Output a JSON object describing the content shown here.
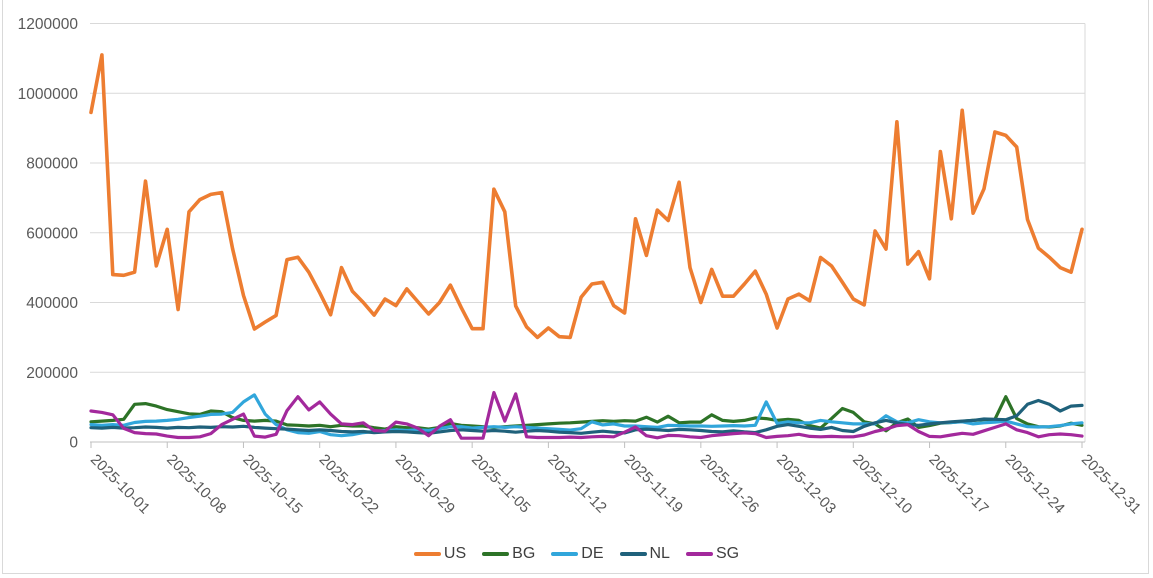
{
  "chart_data": {
    "type": "line",
    "title": "",
    "x_axis": {
      "tick_labels": [
        "2025-10-01",
        "2025-10-08",
        "2025-10-15",
        "2025-10-22",
        "2025-10-29",
        "2025-11-05",
        "2025-11-12",
        "2025-11-19",
        "2025-11-26",
        "2025-12-03",
        "2025-12-10",
        "2025-12-17",
        "2025-12-24",
        "2025-12-31"
      ],
      "start": "2025-10-01",
      "end": "2025-12-31",
      "frequency": "daily",
      "points_per_series": 92,
      "label_rotation_deg": 45
    },
    "y_axis": {
      "tick_labels": [
        "0",
        "200000",
        "400000",
        "600000",
        "800000",
        "1000000",
        "1200000"
      ],
      "min": 0,
      "max": 1200000,
      "grid": true
    },
    "legend": {
      "position": "bottom",
      "entries": [
        "US",
        "BG",
        "DE",
        "NL",
        "SG"
      ]
    },
    "series": [
      {
        "name": "US",
        "color": "#ED7D31",
        "values": [
          945000,
          1110000,
          480000,
          478000,
          487000,
          748000,
          505000,
          610000,
          380000,
          660000,
          695000,
          710000,
          715000,
          554000,
          420000,
          324000,
          344000,
          363000,
          523000,
          530000,
          487000,
          428000,
          365000,
          500000,
          432000,
          400000,
          364000,
          410000,
          391000,
          439000,
          403000,
          367000,
          400000,
          450000,
          385000,
          325000,
          325000,
          725000,
          660000,
          390000,
          330000,
          300000,
          327000,
          302000,
          300000,
          415000,
          453000,
          458000,
          391000,
          370000,
          640000,
          535000,
          665000,
          635000,
          745000,
          500000,
          400000,
          495000,
          418000,
          418000,
          453000,
          490000,
          424000,
          327000,
          410000,
          424000,
          405000,
          529000,
          505000,
          458000,
          410000,
          393000,
          605000,
          553000,
          918000,
          510000,
          546000,
          468000,
          833000,
          640000,
          951000,
          656000,
          726000,
          889000,
          879000,
          846000,
          638000,
          556000,
          530000,
          500000,
          487000,
          610000
        ]
      },
      {
        "name": "BG",
        "color": "#2D7327",
        "values": [
          58000,
          60000,
          62000,
          65000,
          108000,
          110000,
          103000,
          93000,
          87000,
          81000,
          79000,
          89000,
          87000,
          70000,
          62000,
          60000,
          62000,
          60000,
          49000,
          48000,
          46000,
          48000,
          44000,
          48000,
          46000,
          46000,
          41000,
          37000,
          44000,
          41000,
          41000,
          37000,
          42000,
          53000,
          48000,
          46000,
          44000,
          42000,
          44000,
          46000,
          48000,
          50000,
          52000,
          54000,
          55000,
          57000,
          59000,
          61000,
          59000,
          61000,
          60000,
          71000,
          57000,
          74000,
          55000,
          57000,
          57000,
          78000,
          62000,
          59000,
          62000,
          69000,
          67000,
          62000,
          65000,
          62000,
          47000,
          40000,
          67000,
          96000,
          85000,
          58000,
          52000,
          32000,
          55000,
          66000,
          42000,
          47000,
          54000,
          56000,
          59000,
          62000,
          64000,
          65000,
          130000,
          67000,
          52000,
          44000,
          43000,
          46000,
          54000,
          48000
        ]
      },
      {
        "name": "DE",
        "color": "#31A6DB",
        "values": [
          50000,
          48000,
          50000,
          48000,
          56000,
          59000,
          60000,
          62000,
          65000,
          70000,
          74000,
          79000,
          80000,
          85000,
          115000,
          135000,
          80000,
          50000,
          35000,
          27000,
          25000,
          30000,
          21000,
          18000,
          21000,
          27000,
          30000,
          33000,
          35000,
          33000,
          35000,
          33000,
          38000,
          44000,
          44000,
          40000,
          42000,
          44000,
          42000,
          44000,
          42000,
          40000,
          38000,
          36000,
          34000,
          38000,
          58000,
          49000,
          52000,
          46000,
          46000,
          44000,
          42000,
          48000,
          47000,
          46000,
          46000,
          45000,
          46000,
          47000,
          46000,
          48000,
          115000,
          53000,
          58000,
          55000,
          55000,
          62000,
          58000,
          55000,
          52000,
          52000,
          52000,
          75000,
          58000,
          55000,
          64000,
          58000,
          55000,
          56000,
          58000,
          52000,
          55000,
          57000,
          60000,
          52000,
          44000,
          43000,
          44000,
          47000,
          52000,
          55000
        ]
      },
      {
        "name": "NL",
        "color": "#1F617B",
        "values": [
          41000,
          40000,
          42000,
          40000,
          41000,
          43000,
          42000,
          40000,
          42000,
          41000,
          43000,
          42000,
          44000,
          43000,
          45000,
          42000,
          40000,
          38000,
          37000,
          35000,
          33000,
          35000,
          33000,
          30000,
          29000,
          30000,
          27000,
          29000,
          30000,
          29000,
          27000,
          25000,
          29000,
          33000,
          35000,
          33000,
          31000,
          33000,
          31000,
          28000,
          31000,
          33000,
          31000,
          28000,
          27000,
          25000,
          28000,
          31000,
          28000,
          26000,
          35000,
          37000,
          35000,
          33000,
          36000,
          35000,
          33000,
          30000,
          29000,
          32000,
          29000,
          27000,
          35000,
          45000,
          50000,
          45000,
          40000,
          36000,
          42000,
          33000,
          30000,
          45000,
          55000,
          62000,
          55000,
          50000,
          48000,
          52000,
          55000,
          58000,
          60000,
          62000,
          66000,
          65000,
          64000,
          75000,
          108000,
          119000,
          108000,
          89000,
          103000,
          105000
        ]
      },
      {
        "name": "SG",
        "color": "#A3299C",
        "values": [
          89000,
          85000,
          78000,
          39000,
          27000,
          24000,
          23000,
          17000,
          13000,
          13000,
          15000,
          24000,
          50000,
          65000,
          80000,
          17000,
          14000,
          22000,
          90000,
          130000,
          92000,
          115000,
          80000,
          52000,
          50000,
          55000,
          33000,
          31000,
          57000,
          52000,
          40000,
          18000,
          45000,
          64000,
          11000,
          11000,
          11000,
          142000,
          60000,
          138000,
          15000,
          13000,
          13000,
          13000,
          14000,
          13000,
          15000,
          16000,
          15000,
          28000,
          43000,
          18000,
          12000,
          19000,
          18000,
          15000,
          13000,
          18000,
          21000,
          24000,
          26000,
          24000,
          13000,
          16000,
          18000,
          22000,
          16000,
          15000,
          16000,
          15000,
          15000,
          20000,
          30000,
          37000,
          47000,
          50000,
          30000,
          16000,
          15000,
          20000,
          25000,
          22000,
          32000,
          42000,
          52000,
          35000,
          27000,
          15000,
          21000,
          23000,
          21000,
          17000
        ]
      }
    ],
    "layout": {
      "plot_left": 90,
      "plot_right": 1085,
      "plot_top": 23.5,
      "plot_bottom": 442,
      "first_point_x": 91,
      "last_point_x": 1082
    }
  },
  "colors": {
    "gridline": "#d9d9d9",
    "axis_line": "#bfbfbf",
    "tick_text": "#595959",
    "legend_text": "#3f3f3f",
    "background": "#ffffff"
  }
}
